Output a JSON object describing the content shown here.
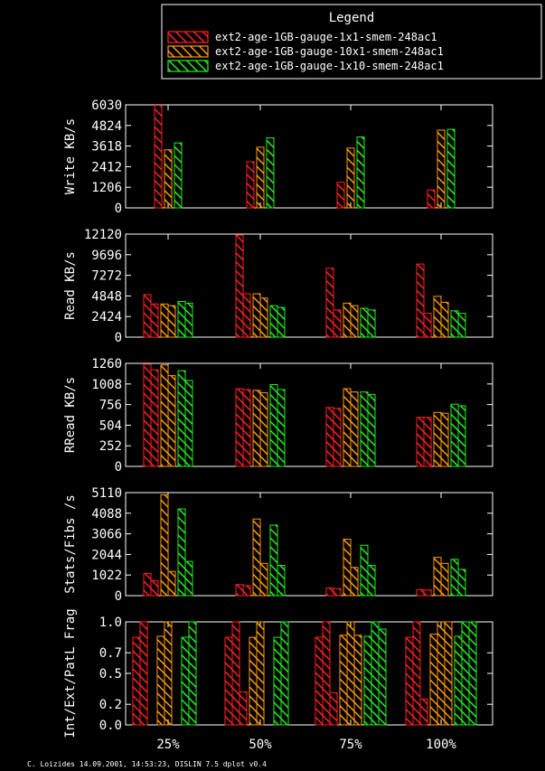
{
  "legend": {
    "title": "Legend",
    "entries": [
      {
        "name": "ext2-age-1GB-gauge-1x1-smem-248ac1",
        "color": "#ff2020"
      },
      {
        "name": "ext2-age-1GB-gauge-10x1-smem-248ac1",
        "color": "#ff9900"
      },
      {
        "name": "ext2-age-1GB-gauge-1x10-smem-248ac1",
        "color": "#22ee22"
      }
    ]
  },
  "footer": "C. Loizides 14.09.2001, 14:53:23, DISLIN 7.5 dplot v0.4",
  "chart_data": [
    {
      "type": "bar",
      "ylabel": "Write KB/s",
      "ylim": [
        0,
        6030
      ],
      "yticks": [
        0,
        1206,
        2412,
        3618,
        4824,
        6030
      ],
      "categories": [
        "25%",
        "50%",
        "75%",
        "100%"
      ],
      "series": [
        {
          "name": "ext2-age-1GB-gauge-1x1-smem-248ac1",
          "values": [
            [
              6000
            ],
            [
              2700
            ],
            [
              1500
            ],
            [
              1050
            ]
          ]
        },
        {
          "name": "ext2-age-1GB-gauge-10x1-smem-248ac1",
          "values": [
            [
              3400
            ],
            [
              3550
            ],
            [
              3500
            ],
            [
              4550
            ]
          ]
        },
        {
          "name": "ext2-age-1GB-gauge-1x10-smem-248ac1",
          "values": [
            [
              3800
            ],
            [
              4100
            ],
            [
              4150
            ],
            [
              4600
            ]
          ]
        }
      ]
    },
    {
      "type": "bar",
      "ylabel": "Read KB/s",
      "ylim": [
        0,
        12120
      ],
      "yticks": [
        0,
        2424,
        4848,
        7272,
        9696,
        12120
      ],
      "categories": [
        "25%",
        "50%",
        "75%",
        "100%"
      ],
      "series": [
        {
          "name": "ext2-age-1GB-gauge-1x1-smem-248ac1",
          "values": [
            [
              5000,
              3900
            ],
            [
              12000,
              5100
            ],
            [
              8100,
              3200
            ],
            [
              8600,
              2800
            ]
          ]
        },
        {
          "name": "ext2-age-1GB-gauge-10x1-smem-248ac1",
          "values": [
            [
              3900,
              3700
            ],
            [
              5100,
              4600
            ],
            [
              4000,
              3700
            ],
            [
              4800,
              4100
            ]
          ]
        },
        {
          "name": "ext2-age-1GB-gauge-1x10-smem-248ac1",
          "values": [
            [
              4200,
              4000
            ],
            [
              3700,
              3500
            ],
            [
              3400,
              3200
            ],
            [
              3100,
              2800
            ]
          ]
        }
      ]
    },
    {
      "type": "bar",
      "ylabel": "RRead KB/s",
      "ylim": [
        0,
        1260
      ],
      "yticks": [
        0,
        252,
        504,
        756,
        1008,
        1260
      ],
      "categories": [
        "25%",
        "50%",
        "75%",
        "100%"
      ],
      "series": [
        {
          "name": "ext2-age-1GB-gauge-1x1-smem-248ac1",
          "values": [
            [
              1250,
              1180
            ],
            [
              950,
              940
            ],
            [
              720,
              710
            ],
            [
              600,
              600
            ]
          ]
        },
        {
          "name": "ext2-age-1GB-gauge-10x1-smem-248ac1",
          "values": [
            [
              1240,
              1110
            ],
            [
              930,
              900
            ],
            [
              950,
              910
            ],
            [
              660,
              650
            ]
          ]
        },
        {
          "name": "ext2-age-1GB-gauge-1x10-smem-248ac1",
          "values": [
            [
              1170,
              1050
            ],
            [
              1000,
              940
            ],
            [
              910,
              880
            ],
            [
              760,
              740
            ]
          ]
        }
      ]
    },
    {
      "type": "bar",
      "ylabel": "Stats/Fibs /s",
      "ylim": [
        0,
        5110
      ],
      "yticks": [
        0,
        1022,
        2044,
        3066,
        4088,
        5110
      ],
      "categories": [
        "25%",
        "50%",
        "75%",
        "100%"
      ],
      "series": [
        {
          "name": "ext2-age-1GB-gauge-1x1-smem-248ac1",
          "values": [
            [
              1100,
              750
            ],
            [
              550,
              500
            ],
            [
              380,
              350
            ],
            [
              300,
              280
            ]
          ]
        },
        {
          "name": "ext2-age-1GB-gauge-10x1-smem-248ac1",
          "values": [
            [
              5000,
              1200
            ],
            [
              3800,
              1600
            ],
            [
              2800,
              1400
            ],
            [
              1900,
              1600
            ]
          ]
        },
        {
          "name": "ext2-age-1GB-gauge-1x10-smem-248ac1",
          "values": [
            [
              4300,
              1700
            ],
            [
              3500,
              1500
            ],
            [
              2500,
              1500
            ],
            [
              1800,
              1300
            ]
          ]
        }
      ]
    },
    {
      "type": "bar",
      "ylabel": "Int/Ext/PatL Frag",
      "ylim": [
        0,
        1.0
      ],
      "yticks": [
        "0.0",
        "0.2",
        "0.5",
        "0.7",
        "1.0"
      ],
      "categories": [
        "25%",
        "50%",
        "75%",
        "100%"
      ],
      "series": [
        {
          "name": "ext2-age-1GB-gauge-1x1-smem-248ac1",
          "values": [
            [
              0.85,
              1.0,
              0.0
            ],
            [
              0.85,
              1.0,
              0.32
            ],
            [
              0.85,
              1.0,
              0.31
            ],
            [
              0.85,
              1.0,
              0.25
            ]
          ]
        },
        {
          "name": "ext2-age-1GB-gauge-10x1-smem-248ac1",
          "values": [
            [
              0.86,
              1.0,
              0.0
            ],
            [
              0.85,
              1.0,
              0.0
            ],
            [
              0.87,
              1.0,
              0.87
            ],
            [
              0.88,
              1.0,
              1.0
            ]
          ]
        },
        {
          "name": "ext2-age-1GB-gauge-1x10-smem-248ac1",
          "values": [
            [
              0.85,
              1.0,
              0.0
            ],
            [
              0.85,
              1.0,
              0.0
            ],
            [
              0.86,
              1.0,
              0.93
            ],
            [
              0.86,
              1.0,
              1.0
            ]
          ]
        }
      ]
    }
  ]
}
